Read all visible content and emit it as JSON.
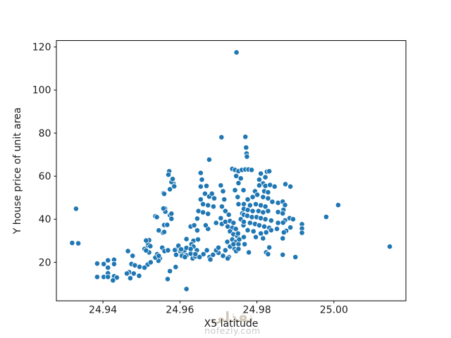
{
  "watermark": {
    "arabic": "نفذلي",
    "domain": "nofezly.com"
  },
  "chart_data": {
    "type": "scatter",
    "title": "",
    "xlabel": "X5 latitude",
    "ylabel": "Y house price of unit area",
    "legend": "none",
    "grid": false,
    "xlim": [
      24.9279,
      25.0187
    ],
    "ylim": [
      2.1,
      123.0
    ],
    "x_ticks": [
      24.94,
      24.96,
      24.98,
      25.0
    ],
    "x_tick_labels": [
      "24.94",
      "24.96",
      "24.98",
      "25.00"
    ],
    "y_ticks": [
      20,
      40,
      60,
      80,
      100,
      120
    ],
    "y_tick_labels": [
      "20",
      "40",
      "60",
      "80",
      "100",
      "120"
    ],
    "marker_color": "#1f77b4",
    "marker_edge_color": "#ffffff",
    "points": [
      [
        24.933,
        44.9
      ],
      [
        24.932,
        29.0
      ],
      [
        24.9336,
        28.8
      ],
      [
        24.9385,
        19.4
      ],
      [
        24.9385,
        13.2
      ],
      [
        24.9402,
        19.2
      ],
      [
        24.9402,
        13.2
      ],
      [
        24.9413,
        20.9
      ],
      [
        24.9429,
        21.2
      ],
      [
        24.9413,
        17.5
      ],
      [
        24.9413,
        14.9
      ],
      [
        24.9413,
        13.2
      ],
      [
        24.9429,
        13.5
      ],
      [
        24.9436,
        12.9
      ],
      [
        24.9426,
        11.6
      ],
      [
        24.9429,
        19.2
      ],
      [
        24.9465,
        25.2
      ],
      [
        24.9477,
        23.0
      ],
      [
        24.9474,
        19.2
      ],
      [
        24.9483,
        18.6
      ],
      [
        24.9468,
        15.4
      ],
      [
        24.948,
        14.8
      ],
      [
        24.9471,
        12.6
      ],
      [
        24.9494,
        13.7
      ],
      [
        24.9462,
        14.8
      ],
      [
        24.9508,
        26.2
      ],
      [
        24.9517,
        27.8
      ],
      [
        24.952,
        24.6
      ],
      [
        24.9512,
        25.5
      ],
      [
        24.9495,
        17.9
      ],
      [
        24.9516,
        18.9
      ],
      [
        24.9524,
        20.0
      ],
      [
        24.9508,
        17.5
      ],
      [
        24.9517,
        28.8
      ],
      [
        24.952,
        30.3
      ],
      [
        24.9512,
        30.1
      ],
      [
        24.9523,
        27.5
      ],
      [
        24.9541,
        23.8
      ],
      [
        24.9548,
        21.8
      ],
      [
        24.9544,
        20.7
      ],
      [
        24.9554,
        26.8
      ],
      [
        24.956,
        25.2
      ],
      [
        24.9569,
        25.6
      ],
      [
        24.9536,
        22.2
      ],
      [
        24.9545,
        23.0
      ],
      [
        24.9545,
        34.8
      ],
      [
        24.9556,
        33.7
      ],
      [
        24.9559,
        37.3
      ],
      [
        24.9561,
        45.0
      ],
      [
        24.9536,
        41.4
      ],
      [
        24.954,
        41.0
      ],
      [
        24.9574,
        41.9
      ],
      [
        24.9572,
        62.3
      ],
      [
        24.9583,
        56.6
      ],
      [
        24.9574,
        53.9
      ],
      [
        24.9557,
        52.1
      ],
      [
        24.9578,
        57.3
      ],
      [
        24.9581,
        58.7
      ],
      [
        24.957,
        60.7
      ],
      [
        24.9585,
        55.3
      ],
      [
        24.9559,
        51.8
      ],
      [
        24.9562,
        43.5
      ],
      [
        24.9557,
        45.0
      ],
      [
        24.9578,
        42.6
      ],
      [
        24.9567,
        37.4
      ],
      [
        24.9559,
        34.1
      ],
      [
        24.9578,
        40.2
      ],
      [
        24.9574,
        15.9
      ],
      [
        24.9568,
        12.2
      ],
      [
        24.9617,
        7.6
      ],
      [
        24.9589,
        17.8
      ],
      [
        24.9587,
        25.7
      ],
      [
        24.959,
        23.5
      ],
      [
        24.9601,
        25.2
      ],
      [
        24.961,
        24.6
      ],
      [
        24.9605,
        23.0
      ],
      [
        24.9617,
        23.2
      ],
      [
        24.9595,
        27.3
      ],
      [
        24.9612,
        25.6
      ],
      [
        24.9633,
        21.8
      ],
      [
        24.9596,
        27.7
      ],
      [
        24.9603,
        26.0
      ],
      [
        24.9617,
        30.8
      ],
      [
        24.9635,
        30.0
      ],
      [
        24.9647,
        30.6
      ],
      [
        24.963,
        28.4
      ],
      [
        24.9617,
        26.7
      ],
      [
        24.9635,
        27.3
      ],
      [
        24.9644,
        25.6
      ],
      [
        24.9628,
        24.0
      ],
      [
        24.964,
        22.7
      ],
      [
        24.9613,
        22.4
      ],
      [
        24.9628,
        36.6
      ],
      [
        24.9637,
        37.2
      ],
      [
        24.9645,
        34.8
      ],
      [
        24.9645,
        40.3
      ],
      [
        24.9648,
        43.8
      ],
      [
        24.9628,
        26.2
      ],
      [
        24.964,
        23.8
      ],
      [
        24.9651,
        22.4
      ],
      [
        24.9661,
        23.8
      ],
      [
        24.967,
        25.6
      ],
      [
        24.9677,
        22.4
      ],
      [
        24.9686,
        23.5
      ],
      [
        24.9679,
        21.3
      ],
      [
        24.9654,
        61.5
      ],
      [
        24.9657,
        58.4
      ],
      [
        24.9654,
        55.2
      ],
      [
        24.9669,
        55.5
      ],
      [
        24.9665,
        51.9
      ],
      [
        24.9676,
        50.5
      ],
      [
        24.9654,
        49.2
      ],
      [
        24.966,
        47.0
      ],
      [
        24.9673,
        46.5
      ],
      [
        24.966,
        43.2
      ],
      [
        24.9673,
        42.5
      ],
      [
        24.9676,
        67.7
      ],
      [
        24.9683,
        51.9
      ],
      [
        24.9689,
        49.7
      ],
      [
        24.9687,
        45.9
      ],
      [
        24.9673,
        35.5
      ],
      [
        24.9667,
        37.2
      ],
      [
        24.9694,
        38.3
      ],
      [
        24.9706,
        55.7
      ],
      [
        24.9712,
        53.0
      ],
      [
        24.9715,
        49.2
      ],
      [
        24.9709,
        45.9
      ],
      [
        24.9718,
        43.8
      ],
      [
        24.9727,
        42.1
      ],
      [
        24.9706,
        40.5
      ],
      [
        24.9709,
        37.8
      ],
      [
        24.9718,
        38.8
      ],
      [
        24.973,
        39.2
      ],
      [
        24.9739,
        38.3
      ],
      [
        24.9724,
        36.6
      ],
      [
        24.9736,
        36.0
      ],
      [
        24.9745,
        35.5
      ],
      [
        24.973,
        34.4
      ],
      [
        24.9739,
        33.0
      ],
      [
        24.9749,
        32.2
      ],
      [
        24.9736,
        30.6
      ],
      [
        24.9745,
        29.5
      ],
      [
        24.9752,
        28.4
      ],
      [
        24.973,
        27.3
      ],
      [
        24.9742,
        26.2
      ],
      [
        24.9723,
        29.5
      ],
      [
        24.9754,
        30.6
      ],
      [
        24.9751,
        33.4
      ],
      [
        24.9752,
        47.0
      ],
      [
        24.975,
        50.3
      ],
      [
        24.9743,
        53.5
      ],
      [
        24.9752,
        56.8
      ],
      [
        24.9758,
        59.0
      ],
      [
        24.9746,
        60.1
      ],
      [
        24.9765,
        53.5
      ],
      [
        24.9762,
        42.7
      ],
      [
        24.9758,
        40.0
      ],
      [
        24.9765,
        37.2
      ],
      [
        24.9712,
        23.0
      ],
      [
        24.9727,
        22.4
      ],
      [
        24.97,
        24.4
      ],
      [
        24.9694,
        25.6
      ],
      [
        24.9708,
        78.1
      ],
      [
        24.9747,
        117.5
      ],
      [
        24.97,
        26.8
      ],
      [
        24.9718,
        25.6
      ],
      [
        24.9724,
        21.8
      ],
      [
        24.9746,
        25.2
      ],
      [
        24.9752,
        26.2
      ],
      [
        24.9739,
        28.4
      ],
      [
        24.9736,
        63.4
      ],
      [
        24.9743,
        62.9
      ],
      [
        24.9752,
        62.4
      ],
      [
        24.9761,
        62.9
      ],
      [
        24.977,
        63.1
      ],
      [
        24.9778,
        63.1
      ],
      [
        24.9786,
        62.9
      ],
      [
        24.9826,
        62.1
      ],
      [
        24.9832,
        62.3
      ],
      [
        24.977,
        78.3
      ],
      [
        24.9772,
        73.3
      ],
      [
        24.9773,
        70.5
      ],
      [
        24.9774,
        69.1
      ],
      [
        24.981,
        61.2
      ],
      [
        24.9822,
        59.5
      ],
      [
        24.9806,
        58.4
      ],
      [
        24.9816,
        56.6
      ],
      [
        24.9806,
        55.7
      ],
      [
        24.9822,
        55.5
      ],
      [
        24.9834,
        55.9
      ],
      [
        24.9846,
        55.2
      ],
      [
        24.9874,
        56.3
      ],
      [
        24.9887,
        55.2
      ],
      [
        24.9795,
        53.0
      ],
      [
        24.9819,
        53.0
      ],
      [
        24.9829,
        52.5
      ],
      [
        24.9801,
        51.4
      ],
      [
        24.9789,
        50.3
      ],
      [
        24.9816,
        50.3
      ],
      [
        24.9829,
        49.7
      ],
      [
        24.9776,
        49.2
      ],
      [
        24.984,
        48.1
      ],
      [
        24.9855,
        47.6
      ],
      [
        24.9766,
        47.0
      ],
      [
        24.9782,
        46.5
      ],
      [
        24.9797,
        47.0
      ],
      [
        24.981,
        46.5
      ],
      [
        24.9822,
        45.9
      ],
      [
        24.9867,
        48.2
      ],
      [
        24.9873,
        46.6
      ],
      [
        24.9766,
        44.8
      ],
      [
        24.9776,
        44.3
      ],
      [
        24.9789,
        43.8
      ],
      [
        24.9804,
        43.8
      ],
      [
        24.9816,
        43.2
      ],
      [
        24.9829,
        43.8
      ],
      [
        24.9869,
        44.4
      ],
      [
        24.9855,
        43.3
      ],
      [
        24.9867,
        42.7
      ],
      [
        24.9766,
        42.1
      ],
      [
        24.9775,
        41.6
      ],
      [
        24.9787,
        41.0
      ],
      [
        24.9799,
        41.0
      ],
      [
        24.981,
        40.5
      ],
      [
        24.9822,
        40.0
      ],
      [
        24.9837,
        39.4
      ],
      [
        24.9885,
        40.5
      ],
      [
        24.9894,
        40.0
      ],
      [
        24.9873,
        39.5
      ],
      [
        24.9868,
        38.4
      ],
      [
        24.9766,
        38.8
      ],
      [
        24.9782,
        38.3
      ],
      [
        24.9795,
        37.8
      ],
      [
        24.9806,
        37.2
      ],
      [
        24.9819,
        36.6
      ],
      [
        24.9832,
        36.0
      ],
      [
        24.9855,
        38.3
      ],
      [
        24.9852,
        35.5
      ],
      [
        24.9837,
        34.9
      ],
      [
        24.9776,
        34.9
      ],
      [
        24.9791,
        34.4
      ],
      [
        24.9887,
        36.2
      ],
      [
        24.9876,
        34.6
      ],
      [
        24.9917,
        37.7
      ],
      [
        24.9917,
        35.7
      ],
      [
        24.9917,
        33.7
      ],
      [
        24.987,
        33.9
      ],
      [
        24.981,
        33.4
      ],
      [
        24.9824,
        33.9
      ],
      [
        24.9797,
        31.7
      ],
      [
        24.9816,
        31.1
      ],
      [
        24.9867,
        31.1
      ],
      [
        24.9766,
        31.7
      ],
      [
        24.9832,
        26.9
      ],
      [
        24.9824,
        24.6
      ],
      [
        24.9867,
        23.5
      ],
      [
        24.99,
        22.4
      ],
      [
        24.9768,
        28.4
      ],
      [
        24.9779,
        24.6
      ],
      [
        24.9829,
        23.8
      ],
      [
        24.998,
        41.1
      ],
      [
        25.0011,
        46.6
      ],
      [
        25.0145,
        27.3
      ]
    ]
  }
}
